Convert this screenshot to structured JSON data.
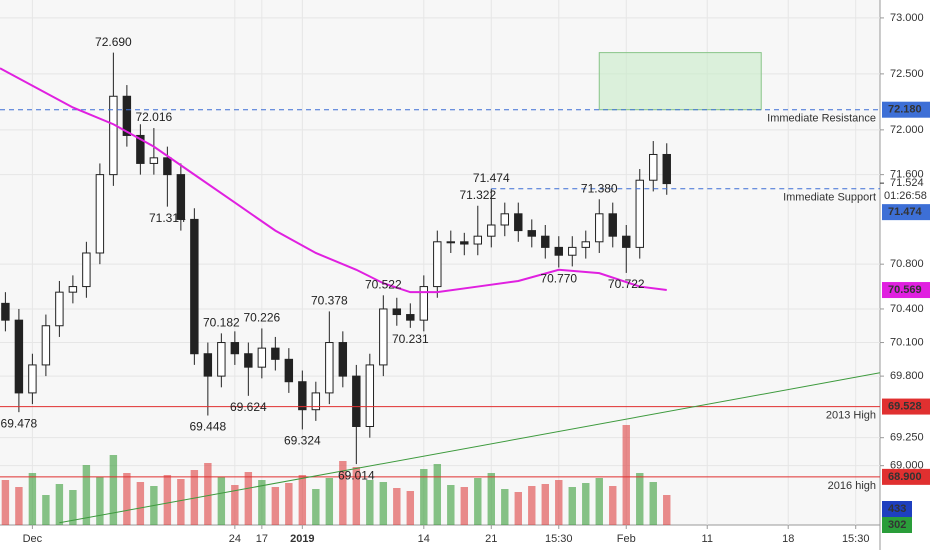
{
  "chart_data": {
    "type": "candlestick",
    "x": [
      -2,
      -1,
      0,
      1,
      2,
      3,
      4,
      5,
      6,
      7,
      8,
      9,
      10,
      11,
      12,
      13,
      14,
      15,
      16,
      17,
      18,
      19,
      20,
      21,
      22,
      23,
      24,
      25,
      26,
      27,
      28,
      29,
      30,
      31,
      32,
      33,
      34,
      35,
      36,
      37,
      38,
      39,
      40,
      41,
      42,
      43,
      44,
      45,
      46,
      47
    ],
    "open": [
      70.45,
      70.3,
      69.65,
      69.9,
      70.25,
      70.55,
      70.6,
      70.9,
      71.6,
      72.3,
      71.95,
      71.7,
      71.75,
      71.6,
      71.2,
      70.0,
      69.8,
      70.1,
      70.0,
      69.88,
      70.05,
      69.95,
      69.75,
      69.5,
      69.65,
      70.1,
      69.8,
      69.35,
      69.9,
      70.4,
      70.35,
      70.3,
      70.6,
      71.0,
      71.0,
      70.98,
      71.05,
      71.15,
      71.25,
      71.1,
      71.05,
      70.95,
      70.88,
      70.95,
      71.0,
      71.25,
      71.05,
      70.95,
      71.55,
      71.78
    ],
    "high": [
      70.55,
      70.4,
      70.0,
      70.35,
      70.65,
      70.7,
      71.0,
      71.7,
      72.69,
      72.4,
      72.05,
      72.016,
      71.85,
      71.7,
      71.3,
      70.1,
      70.182,
      70.2,
      70.1,
      70.226,
      70.15,
      70.05,
      69.85,
      69.75,
      70.378,
      70.2,
      69.9,
      70.0,
      70.522,
      70.5,
      70.45,
      70.7,
      71.1,
      71.1,
      71.08,
      71.322,
      71.474,
      71.35,
      71.35,
      71.2,
      71.15,
      71.05,
      71.05,
      71.1,
      71.38,
      71.35,
      71.15,
      71.65,
      71.9,
      71.88
    ],
    "low": [
      70.2,
      69.478,
      69.55,
      69.8,
      70.15,
      70.45,
      70.5,
      70.8,
      71.5,
      71.85,
      71.6,
      71.6,
      71.314,
      71.1,
      69.9,
      69.448,
      69.7,
      69.9,
      69.624,
      69.78,
      69.85,
      69.65,
      69.324,
      69.4,
      69.55,
      69.7,
      69.014,
      69.25,
      69.8,
      70.25,
      70.231,
      70.2,
      70.5,
      70.9,
      70.88,
      70.88,
      70.95,
      71.05,
      71.0,
      70.95,
      70.85,
      70.77,
      70.78,
      70.85,
      70.9,
      70.95,
      70.722,
      70.85,
      71.45,
      71.42
    ],
    "close": [
      70.3,
      69.65,
      69.9,
      70.25,
      70.55,
      70.6,
      70.9,
      71.6,
      72.3,
      71.95,
      71.7,
      71.75,
      71.6,
      71.2,
      70.0,
      69.8,
      70.1,
      70.0,
      69.88,
      70.05,
      69.95,
      69.75,
      69.5,
      69.65,
      70.1,
      69.8,
      69.35,
      69.9,
      70.4,
      70.35,
      70.3,
      70.6,
      71.0,
      71.0,
      70.98,
      71.05,
      71.15,
      71.25,
      71.1,
      71.05,
      70.95,
      70.88,
      70.95,
      71.0,
      71.25,
      71.05,
      70.95,
      71.55,
      71.78,
      71.52
    ],
    "volume": [
      450,
      380,
      520,
      300,
      410,
      350,
      600,
      480,
      700,
      520,
      430,
      390,
      500,
      460,
      550,
      620,
      480,
      400,
      530,
      450,
      380,
      420,
      500,
      360,
      470,
      640,
      580,
      450,
      430,
      370,
      340,
      560,
      610,
      400,
      380,
      470,
      520,
      360,
      330,
      390,
      410,
      450,
      380,
      420,
      470,
      390,
      1000,
      520,
      430,
      300
    ],
    "vlim": [
      0,
      1300
    ],
    "xlim": [
      -2.4,
      62.8
    ],
    "xticks": [
      {
        "value": 0,
        "label": "Dec"
      },
      17,
      {
        "value": 15,
        "label": "24"
      },
      {
        "value": 20,
        "label": "2019"
      },
      {
        "value": 29,
        "label": "14"
      },
      {
        "value": 34,
        "label": "21"
      },
      {
        "value": 39,
        "label": "15:30"
      },
      {
        "value": 44,
        "label": "Feb"
      },
      {
        "value": 50,
        "label": "11"
      },
      {
        "value": 56,
        "label": "18"
      },
      {
        "value": 61,
        "label": "15:30"
      }
    ],
    "ylim": [
      68.47,
      73.16
    ],
    "yticks": [
      {
        "value": 73,
        "label": "73.000"
      },
      {
        "value": 72.5,
        "label": "72.500"
      },
      {
        "value": 72,
        "label": "72.000"
      },
      {
        "value": 71.6,
        "label": "71.600"
      },
      {
        "value": 70.8,
        "label": "70.800"
      },
      {
        "value": 70.4,
        "label": "70.400"
      },
      {
        "value": 70.1,
        "label": "70.100"
      },
      {
        "value": 69.8,
        "label": "69.800"
      },
      {
        "value": 69.25,
        "label": "69.250"
      },
      {
        "value": 69,
        "label": "69.000"
      }
    ],
    "grid": true,
    "ma": {
      "color": "#e020e0",
      "x": [
        -2.4,
        3,
        6,
        9,
        12,
        15,
        18,
        21,
        24,
        26,
        28,
        30,
        33,
        36,
        39,
        42,
        45,
        47
      ],
      "values": [
        72.55,
        72.2,
        72.05,
        71.85,
        71.6,
        71.35,
        71.1,
        70.9,
        70.75,
        70.63,
        70.55,
        70.55,
        70.6,
        70.65,
        70.75,
        70.72,
        70.6,
        70.569
      ],
      "value_label": "70.569"
    },
    "trendline": {
      "color": "#3d9a3d",
      "x": [
        2,
        62.8
      ],
      "values": [
        68.49,
        69.83
      ]
    },
    "target_box": {
      "x": [
        42,
        54
      ],
      "y": [
        72.18,
        72.69
      ]
    },
    "levels": [
      {
        "name": "Immediate Resistance",
        "value": 72.18,
        "value_label": "72.180",
        "color": "#3d6fd6",
        "dashed": true
      },
      {
        "name": "Immediate Support",
        "value": 71.474,
        "value_label": "71.474",
        "color": "#3d6fd6",
        "dashed": true,
        "x_from": 34
      },
      {
        "name": "2013 High",
        "value": 69.528,
        "value_label": "69.528",
        "color": "#e03030",
        "dashed": false
      },
      {
        "name": "2016 high",
        "value": 68.9,
        "value_label": "68.900",
        "color": "#e03030",
        "dashed": false
      }
    ],
    "last_price": {
      "value": 71.524,
      "label": "71.524",
      "countdown": "01:26:58"
    },
    "annotations": [
      {
        "x": -1,
        "value": 69.478,
        "label": "69.478"
      },
      {
        "x": 6,
        "value": 72.69,
        "label": "72.690"
      },
      {
        "x": 9,
        "value": 72.016,
        "label": "72.016"
      },
      {
        "x": 10,
        "value": 71.314,
        "label": "71.314"
      },
      {
        "x": 13,
        "value": 69.448,
        "label": "69.448"
      },
      {
        "x": 14,
        "value": 70.182,
        "label": "70.182"
      },
      {
        "x": 16,
        "value": 69.624,
        "label": "69.624"
      },
      {
        "x": 17,
        "value": 70.226,
        "label": "70.226"
      },
      {
        "x": 20,
        "value": 69.324,
        "label": "69.324"
      },
      {
        "x": 22,
        "value": 70.378,
        "label": "70.378"
      },
      {
        "x": 24,
        "value": 69.014,
        "label": "69.014"
      },
      {
        "x": 26,
        "value": 70.522,
        "label": "70.522"
      },
      {
        "x": 28,
        "value": 70.231,
        "label": "70.231"
      },
      {
        "x": 33,
        "value": 71.322,
        "label": "71.322"
      },
      {
        "x": 34,
        "value": 71.474,
        "label": "71.474"
      },
      {
        "x": 39,
        "value": 70.77,
        "label": "70.770"
      },
      {
        "x": 42,
        "value": 71.38,
        "label": "71.380"
      },
      {
        "x": 44,
        "value": 70.722,
        "label": "70.722"
      }
    ],
    "indicator_tags": [
      {
        "value": 433,
        "color": "#1e3fbf"
      },
      {
        "value": 302,
        "color": "#2a9d3a"
      }
    ]
  }
}
